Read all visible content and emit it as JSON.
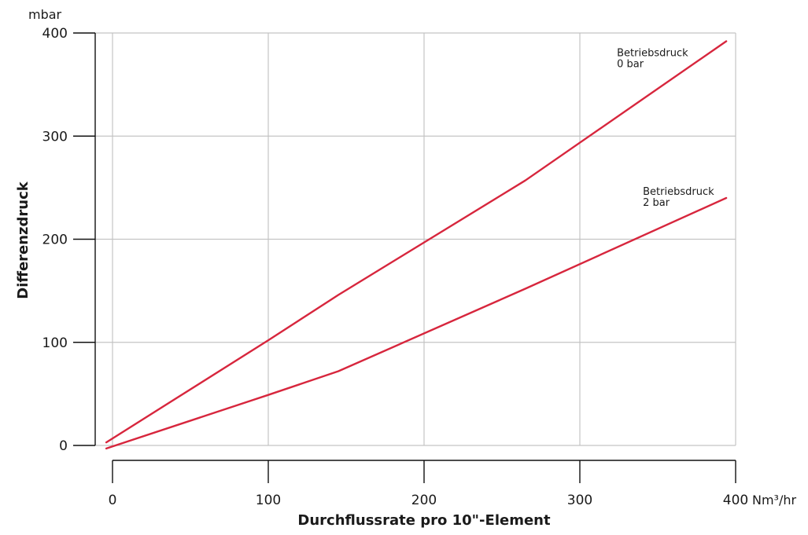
{
  "chart_data": {
    "type": "line",
    "title": "",
    "xlabel": "Durchflussrate pro 10\"-Element",
    "ylabel": "Differenzdruck",
    "x_unit": "Nm³/hr",
    "y_unit": "mbar",
    "xlim": [
      0,
      400
    ],
    "ylim": [
      0,
      400
    ],
    "x_ticks": [
      "0",
      "100",
      "200",
      "300",
      "400"
    ],
    "y_ticks": [
      "0",
      "100",
      "200",
      "300",
      "400"
    ],
    "grid": true,
    "line_color": "#d7263d",
    "series": [
      {
        "label_lines": [
          "Betriebsdruck",
          "0 bar"
        ],
        "x": [
          -4,
          100,
          145,
          265,
          394
        ],
        "y": [
          3,
          102,
          146,
          257,
          392
        ]
      },
      {
        "label_lines": [
          "Betriebsdruck",
          "2 bar"
        ],
        "x": [
          -4,
          100,
          145,
          265,
          394
        ],
        "y": [
          -3,
          49,
          72,
          152,
          240
        ]
      }
    ]
  }
}
